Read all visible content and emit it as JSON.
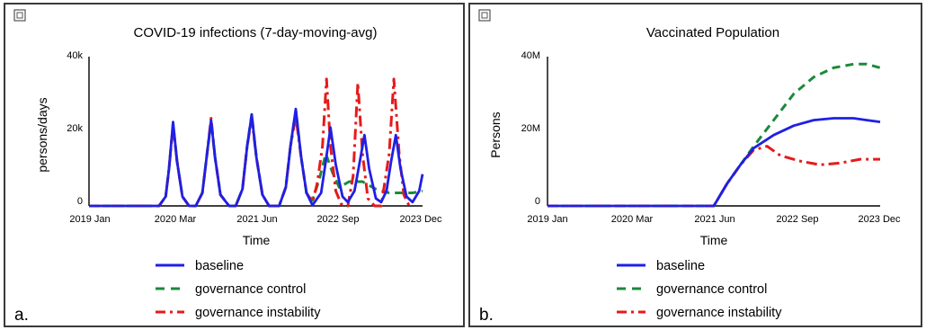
{
  "chart_data": [
    {
      "type": "line",
      "panel_label": "a.",
      "title": "COVID-19 infections (7-day-moving-avg)",
      "xlabel": "Time",
      "ylabel": "persons/days",
      "x_tick_labels": [
        "2019 Jan",
        "2020 Mar",
        "2021 Jun",
        "2022 Sep",
        "2023 Dec"
      ],
      "y_tick_labels": [
        "40k",
        "20k",
        "0"
      ],
      "ylim": [
        0,
        40000
      ],
      "x_unit": "years since 2019 Jan",
      "xlim": [
        0,
        5.0
      ],
      "legend_position": "bottom",
      "series": [
        {
          "name": "baseline",
          "color": "#1f1fe6",
          "style": "solid",
          "points": [
            [
              0,
              0
            ],
            [
              0.9,
              0
            ],
            [
              1.05,
              0
            ],
            [
              1.15,
              2500
            ],
            [
              1.2,
              10000
            ],
            [
              1.26,
              22500
            ],
            [
              1.32,
              12000
            ],
            [
              1.4,
              2500
            ],
            [
              1.5,
              0
            ],
            [
              1.6,
              0
            ],
            [
              1.7,
              3500
            ],
            [
              1.77,
              14000
            ],
            [
              1.83,
              23000
            ],
            [
              1.89,
              13000
            ],
            [
              1.97,
              3000
            ],
            [
              2.1,
              0
            ],
            [
              2.2,
              0
            ],
            [
              2.3,
              4500
            ],
            [
              2.37,
              16000
            ],
            [
              2.44,
              24500
            ],
            [
              2.51,
              13000
            ],
            [
              2.6,
              3000
            ],
            [
              2.7,
              0
            ],
            [
              2.85,
              0
            ],
            [
              2.95,
              5000
            ],
            [
              3.02,
              16000
            ],
            [
              3.1,
              26000
            ],
            [
              3.18,
              13000
            ],
            [
              3.26,
              3500
            ],
            [
              3.35,
              200
            ],
            [
              3.48,
              3500
            ],
            [
              3.55,
              12000
            ],
            [
              3.62,
              21000
            ],
            [
              3.7,
              11000
            ],
            [
              3.8,
              2500
            ],
            [
              3.88,
              1000
            ],
            [
              3.98,
              4000
            ],
            [
              4.06,
              12000
            ],
            [
              4.13,
              19000
            ],
            [
              4.2,
              10000
            ],
            [
              4.3,
              2000
            ],
            [
              4.38,
              1000
            ],
            [
              4.46,
              4000
            ],
            [
              4.53,
              12000
            ],
            [
              4.6,
              19000
            ],
            [
              4.67,
              10000
            ],
            [
              4.76,
              2500
            ],
            [
              4.85,
              1000
            ],
            [
              4.95,
              4000
            ],
            [
              5.0,
              8500
            ]
          ]
        },
        {
          "name": "governance control",
          "color": "#1a8a3a",
          "style": "dashed",
          "points": [
            [
              0,
              0
            ],
            [
              0.9,
              0
            ],
            [
              1.05,
              0
            ],
            [
              1.15,
              2500
            ],
            [
              1.2,
              10000
            ],
            [
              1.26,
              22000
            ],
            [
              1.32,
              12000
            ],
            [
              1.4,
              2500
            ],
            [
              1.5,
              0
            ],
            [
              1.6,
              0
            ],
            [
              1.7,
              3500
            ],
            [
              1.77,
              14000
            ],
            [
              1.83,
              22500
            ],
            [
              1.89,
              13000
            ],
            [
              1.97,
              3000
            ],
            [
              2.1,
              0
            ],
            [
              2.2,
              0
            ],
            [
              2.3,
              4500
            ],
            [
              2.37,
              16000
            ],
            [
              2.44,
              24500
            ],
            [
              2.51,
              13000
            ],
            [
              2.6,
              3000
            ],
            [
              2.7,
              0
            ],
            [
              2.85,
              0
            ],
            [
              2.95,
              5000
            ],
            [
              3.02,
              16000
            ],
            [
              3.1,
              25500
            ],
            [
              3.18,
              13000
            ],
            [
              3.26,
              3500
            ],
            [
              3.35,
              1500
            ],
            [
              3.45,
              7000
            ],
            [
              3.55,
              14000
            ],
            [
              3.65,
              9000
            ],
            [
              3.75,
              5000
            ],
            [
              3.9,
              6500
            ],
            [
              4.1,
              6500
            ],
            [
              4.3,
              4500
            ],
            [
              4.5,
              3500
            ],
            [
              4.7,
              3500
            ],
            [
              4.85,
              3500
            ],
            [
              5.0,
              4000
            ]
          ]
        },
        {
          "name": "governance instability",
          "color": "#e61a1a",
          "style": "dashdot",
          "points": [
            [
              0,
              0
            ],
            [
              0.9,
              0
            ],
            [
              1.05,
              0
            ],
            [
              1.15,
              2500
            ],
            [
              1.2,
              10000
            ],
            [
              1.26,
              21500
            ],
            [
              1.32,
              12000
            ],
            [
              1.4,
              2500
            ],
            [
              1.5,
              0
            ],
            [
              1.6,
              0
            ],
            [
              1.7,
              3500
            ],
            [
              1.77,
              14000
            ],
            [
              1.83,
              23500
            ],
            [
              1.89,
              13000
            ],
            [
              1.97,
              3000
            ],
            [
              2.1,
              0
            ],
            [
              2.2,
              0
            ],
            [
              2.3,
              4500
            ],
            [
              2.37,
              16000
            ],
            [
              2.44,
              23500
            ],
            [
              2.51,
              13000
            ],
            [
              2.6,
              3000
            ],
            [
              2.7,
              0
            ],
            [
              2.85,
              0
            ],
            [
              2.95,
              5000
            ],
            [
              3.02,
              16000
            ],
            [
              3.1,
              24000
            ],
            [
              3.18,
              13000
            ],
            [
              3.26,
              3500
            ],
            [
              3.35,
              1000
            ],
            [
              3.42,
              6000
            ],
            [
              3.5,
              16000
            ],
            [
              3.56,
              34000
            ],
            [
              3.62,
              16000
            ],
            [
              3.7,
              4000
            ],
            [
              3.78,
              500
            ],
            [
              3.88,
              0
            ],
            [
              3.96,
              8000
            ],
            [
              4.03,
              33000
            ],
            [
              4.1,
              14000
            ],
            [
              4.18,
              2000
            ],
            [
              4.28,
              0
            ],
            [
              4.38,
              0
            ],
            [
              4.5,
              14000
            ],
            [
              4.57,
              34000
            ],
            [
              4.65,
              14000
            ],
            [
              4.72,
              3000
            ],
            [
              4.8,
              0
            ]
          ]
        }
      ]
    },
    {
      "type": "line",
      "panel_label": "b.",
      "title": "Vaccinated Population",
      "xlabel": "Time",
      "ylabel": "Persons",
      "x_tick_labels": [
        "2019 Jan",
        "2020 Mar",
        "2021 Jun",
        "2022 Sep",
        "2023 Dec"
      ],
      "y_tick_labels": [
        "40M",
        "20M",
        "0"
      ],
      "ylim": [
        0,
        40000000
      ],
      "x_unit": "years since 2019 Jan",
      "xlim": [
        0,
        5.0
      ],
      "legend_position": "bottom",
      "series": [
        {
          "name": "baseline",
          "color": "#1f1fe6",
          "style": "solid",
          "points": [
            [
              0,
              0
            ],
            [
              2.0,
              0
            ],
            [
              2.5,
              0
            ],
            [
              2.7,
              6000000
            ],
            [
              2.9,
              11000000
            ],
            [
              3.1,
              15500000
            ],
            [
              3.4,
              19000000
            ],
            [
              3.7,
              21500000
            ],
            [
              4.0,
              23000000
            ],
            [
              4.3,
              23500000
            ],
            [
              4.6,
              23500000
            ],
            [
              4.8,
              23000000
            ],
            [
              5.0,
              22500000
            ]
          ]
        },
        {
          "name": "governance control",
          "color": "#1a8a3a",
          "style": "dashed",
          "points": [
            [
              0,
              0
            ],
            [
              2.0,
              0
            ],
            [
              2.5,
              0
            ],
            [
              2.7,
              6000000
            ],
            [
              2.9,
              11000000
            ],
            [
              3.1,
              16000000
            ],
            [
              3.4,
              23000000
            ],
            [
              3.7,
              30000000
            ],
            [
              4.0,
              34500000
            ],
            [
              4.3,
              37000000
            ],
            [
              4.6,
              38000000
            ],
            [
              4.8,
              38000000
            ],
            [
              5.0,
              37000000
            ]
          ]
        },
        {
          "name": "governance instability",
          "color": "#e61a1a",
          "style": "dashdot",
          "points": [
            [
              0,
              0
            ],
            [
              2.0,
              0
            ],
            [
              2.5,
              0
            ],
            [
              2.7,
              6000000
            ],
            [
              2.9,
              11000000
            ],
            [
              3.1,
              15000000
            ],
            [
              3.3,
              16000000
            ],
            [
              3.5,
              13500000
            ],
            [
              3.8,
              12000000
            ],
            [
              4.1,
              11000000
            ],
            [
              4.4,
              11500000
            ],
            [
              4.7,
              12500000
            ],
            [
              5.0,
              12500000
            ]
          ]
        }
      ]
    }
  ]
}
